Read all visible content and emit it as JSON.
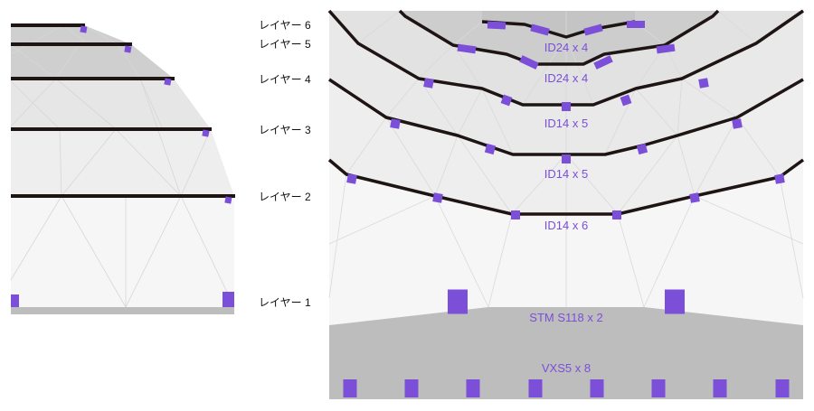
{
  "colors": {
    "speaker": "#7b4fd8",
    "truss": "#1e1414",
    "stage": "#bdbdbd"
  },
  "side_view": {
    "layers": [
      "レイヤー 6",
      "レイヤー 5",
      "レイヤー 4",
      "レイヤー 3",
      "レイヤー 2",
      "レイヤー 1"
    ]
  },
  "plan_view": {
    "labels": [
      "ID24 x 4",
      "ID24 x 4",
      "ID14 x 5",
      "ID14 x 5",
      "ID14 x 6",
      "STM S118 x 2",
      "VXS5 x 8"
    ]
  }
}
